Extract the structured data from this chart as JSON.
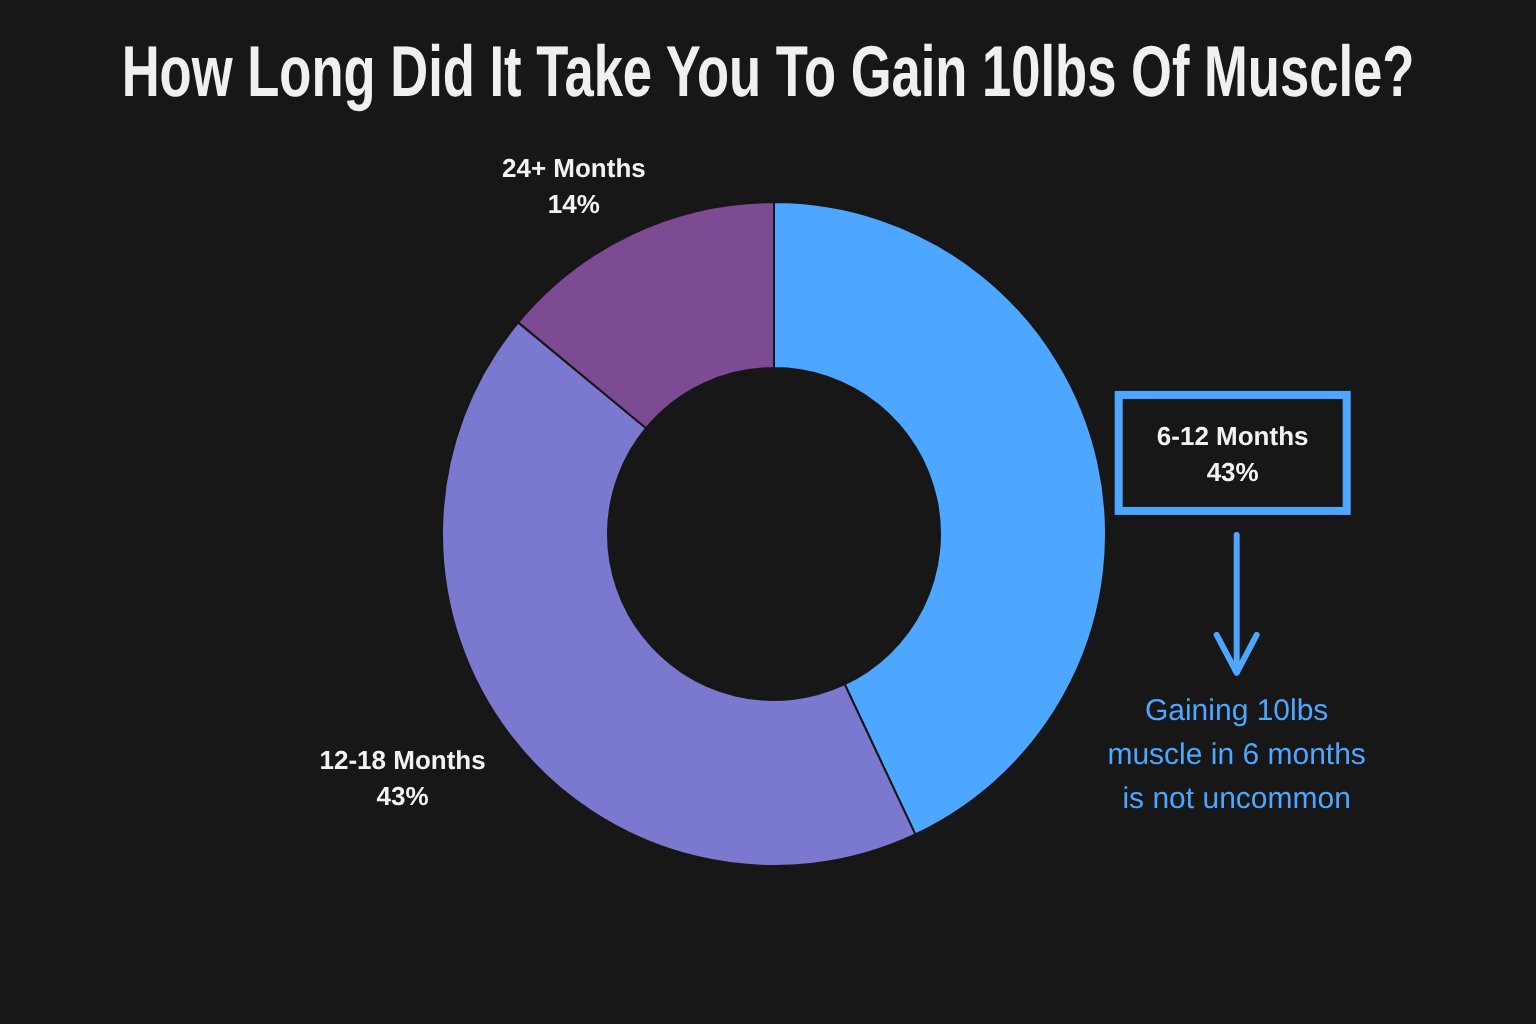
{
  "chart_data": {
    "type": "donut",
    "title": "How Long Did It Take You To Gain 10lbs Of Muscle?",
    "categories": [
      "6-12 Months",
      "12-18 Months",
      "24+ Months"
    ],
    "values": [
      43,
      43,
      14
    ],
    "colors": [
      "#4da6ff",
      "#7b78cf",
      "#7d4a94"
    ],
    "value_labels": [
      "43%",
      "43%",
      "14%"
    ],
    "annotations": [
      "Gaining 10lbs muscle in 6 months is not uncommon"
    ]
  }
}
